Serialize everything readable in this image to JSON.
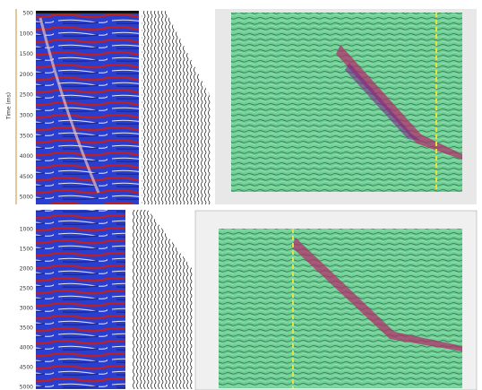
{
  "panels": [
    {
      "axis_title": "Time (ms)",
      "ticks": [
        500,
        1000,
        1500,
        2000,
        2500,
        3000,
        3500,
        4000,
        4500,
        5000
      ]
    },
    {
      "ticks": [
        1000,
        1500,
        2000,
        2500,
        3000,
        3500,
        4000,
        4500,
        5000
      ]
    }
  ]
}
